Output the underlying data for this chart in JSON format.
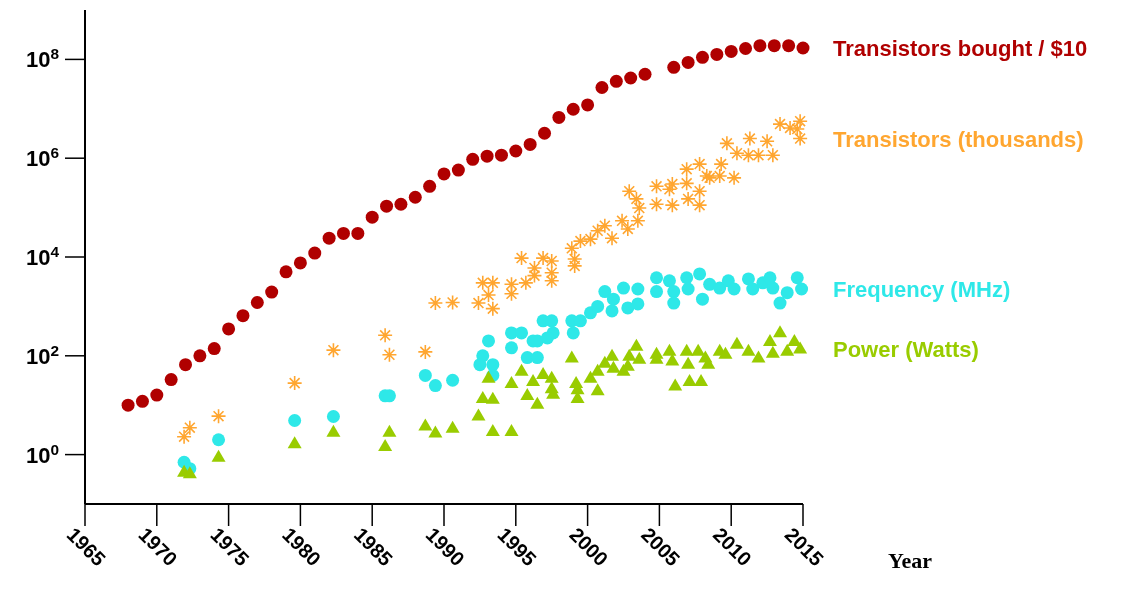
{
  "chart_data": {
    "type": "scatter",
    "xlabel": "Year",
    "log": "y",
    "legend": "right",
    "xlim": [
      1965,
      2015
    ],
    "ylim": [
      0.1,
      1000000000.0
    ],
    "xticks": [
      1965,
      1970,
      1975,
      1980,
      1985,
      1990,
      1995,
      2000,
      2005,
      2010,
      2015
    ],
    "yticks": [
      {
        "value": 1,
        "label": "10$^{0}$"
      },
      {
        "value": 100,
        "label": "10$^{2}$"
      },
      {
        "value": 10000,
        "label": "10$^{4}$"
      },
      {
        "value": 1000000.0,
        "label": "10$^{6}$"
      },
      {
        "value": 100000000.0,
        "label": "10$^{8}$"
      }
    ],
    "series": [
      {
        "name": "Transistors bought / $10",
        "color": "#b00000",
        "marker": "circle",
        "x": [
          1968,
          1969,
          1970,
          1971,
          1972,
          1973,
          1974,
          1975,
          1976,
          1977,
          1978,
          1979,
          1980,
          1981,
          1982,
          1983,
          1984,
          1985,
          1986,
          1987,
          1988,
          1989,
          1990,
          1991,
          1992,
          1993,
          1994,
          1995,
          1996,
          1997,
          1998,
          1999,
          2000,
          2001,
          2002,
          2003,
          2004,
          2006,
          2007,
          2008,
          2009,
          2010,
          2011,
          2012,
          2013,
          2014,
          2015
        ],
        "values": [
          10,
          12,
          16,
          33,
          66,
          100,
          140,
          350,
          650,
          1200,
          1950,
          5000,
          7600,
          12000,
          24000,
          30000,
          30000,
          64000,
          107000,
          117000,
          162000,
          270000,
          480000,
          575000,
          950000,
          1100000,
          1150000,
          1400000,
          1900000,
          3200000,
          6700000,
          9800000,
          12000000,
          27000000,
          36000000,
          42000000,
          50000000,
          69000000,
          87000000,
          110000000,
          126000000,
          145000000,
          166000000,
          190000000,
          190000000,
          190000000,
          170000000
        ]
      },
      {
        "name": "Transistors (thousands)",
        "color": "#ffa630",
        "marker": "cross",
        "x": [
          1971.9,
          1972.3,
          1974.3,
          1979.6,
          1982.3,
          1985.9,
          1986.2,
          1988.7,
          1989.4,
          1990.6,
          1992.4,
          1992.7,
          1993.1,
          1993.4,
          1993.4,
          1994.7,
          1994.7,
          1995.4,
          1995.7,
          1996.3,
          1996.3,
          1996.9,
          1997.5,
          1997.5,
          1997.5,
          1998.9,
          1999.1,
          1999.1,
          1999.5,
          2000.2,
          2000.7,
          2001.2,
          2001.7,
          2002.4,
          2002.8,
          2003.5,
          2002.9,
          2003.4,
          2003.6,
          2004.8,
          2004.8,
          2005.7,
          2005.9,
          2005.9,
          2006.9,
          2006.9,
          2007.0,
          2007.8,
          2007.8,
          2007.8,
          2008.3,
          2008.5,
          2009.3,
          2009.2,
          2010.2,
          2009.7,
          2010.4,
          2011.2,
          2011.3,
          2011.9,
          2012.5,
          2012.9,
          2013.4,
          2014.1,
          2014.6,
          2014.8,
          2014.8
        ],
        "values": [
          2.3,
          3.5,
          6,
          28,
          130,
          260,
          105,
          120,
          1170,
          1200,
          1170,
          3000,
          1700,
          3000,
          900,
          2800,
          1800,
          9500,
          3000,
          6000,
          4200,
          9500,
          8300,
          4800,
          3300,
          15000,
          9100,
          6600,
          21000,
          23000,
          34000,
          43000,
          24000,
          54000,
          37000,
          54000,
          215000,
          150000,
          98000,
          270000,
          117000,
          235000,
          300000,
          112000,
          600000,
          310000,
          150000,
          760000,
          215000,
          112000,
          435000,
          400000,
          760000,
          435000,
          400000,
          2000000,
          1260000,
          1150000,
          2500000,
          1150000,
          2200000,
          1150000,
          4900000,
          4100000,
          3900000,
          5600000,
          2500000
        ]
      },
      {
        "name": "Frequency (MHz)",
        "color": "#2ee8e8",
        "marker": "circle",
        "x": [
          1971.9,
          1972.3,
          1974.3,
          1979.6,
          1982.3,
          1985.9,
          1986.2,
          1988.7,
          1989.4,
          1990.6,
          1992.7,
          1992.5,
          1993.4,
          1993.4,
          1993.1,
          1994.7,
          1995.4,
          1994.7,
          1995.8,
          1996.5,
          1996.2,
          1996.5,
          1996.9,
          1997.5,
          1997.6,
          1997.2,
          1998.9,
          1999.5,
          1999.0,
          2000.2,
          2000.7,
          2001.7,
          2001.2,
          2002.5,
          2002.8,
          2003.5,
          2003.5,
          2001.8,
          2004.8,
          2004.8,
          2005.7,
          2006.0,
          2006.0,
          2006.9,
          2007.0,
          2007.8,
          2008.0,
          2008.5,
          2009.2,
          2009.8,
          2010.2,
          2011.2,
          2011.5,
          2012.2,
          2012.7,
          2012.9,
          2013.4,
          2013.9,
          2014.6,
          2014.9
        ],
        "values": [
          0.7,
          0.52,
          2,
          4.9,
          5.9,
          15.5,
          15.5,
          40,
          25,
          32,
          100,
          66,
          66,
          40,
          200,
          290,
          290,
          145,
          92,
          92,
          200,
          200,
          510,
          510,
          290,
          230,
          510,
          510,
          290,
          740,
          1000,
          810,
          2000,
          2350,
          930,
          2250,
          1120,
          1400,
          3800,
          2000,
          3300,
          2000,
          1170,
          3800,
          2250,
          4550,
          1400,
          2800,
          2350,
          3300,
          2250,
          3600,
          2250,
          3000,
          3800,
          2350,
          1170,
          1900,
          3800,
          2250
        ]
      },
      {
        "name": "Power (Watts)",
        "color": "#99cc00",
        "marker": "triangle",
        "x": [
          1971.9,
          1972.3,
          1974.3,
          1979.6,
          1982.3,
          1985.9,
          1986.2,
          1988.7,
          1989.4,
          1990.6,
          1992.4,
          1992.7,
          1993.4,
          1993.1,
          1993.4,
          1994.7,
          1994.7,
          1995.4,
          1995.8,
          1996.2,
          1996.5,
          1996.9,
          1997.5,
          1997.5,
          1997.6,
          1998.9,
          1999.2,
          1999.3,
          1999.3,
          2000.2,
          2000.7,
          2000.7,
          2001.2,
          2001.7,
          2001.8,
          2002.5,
          2002.8,
          2002.9,
          2003.4,
          2003.6,
          2004.8,
          2004.8,
          2005.7,
          2005.9,
          2006.1,
          2006.9,
          2007.0,
          2007.1,
          2007.7,
          2007.9,
          2008.2,
          2008.4,
          2009.2,
          2009.6,
          2010.4,
          2011.2,
          2011.9,
          2012.7,
          2012.9,
          2013.4,
          2013.9,
          2014.4,
          2014.8
        ],
        "values": [
          0.45,
          0.42,
          0.9,
          1.7,
          2.9,
          1.5,
          2.9,
          3.9,
          2.8,
          3.5,
          6.2,
          14,
          13.5,
          36,
          3,
          3,
          28,
          50,
          16,
          31,
          10.7,
          43,
          36,
          22,
          17,
          92,
          28,
          21,
          14,
          36,
          50,
          20,
          72,
          100,
          57,
          50,
          63,
          100,
          160,
          87,
          110,
          87,
          126,
          80,
          25,
          126,
          69,
          31,
          126,
          31,
          92,
          69,
          126,
          110,
          175,
          126,
          92,
          200,
          115,
          300,
          126,
          200,
          140
        ]
      }
    ]
  }
}
